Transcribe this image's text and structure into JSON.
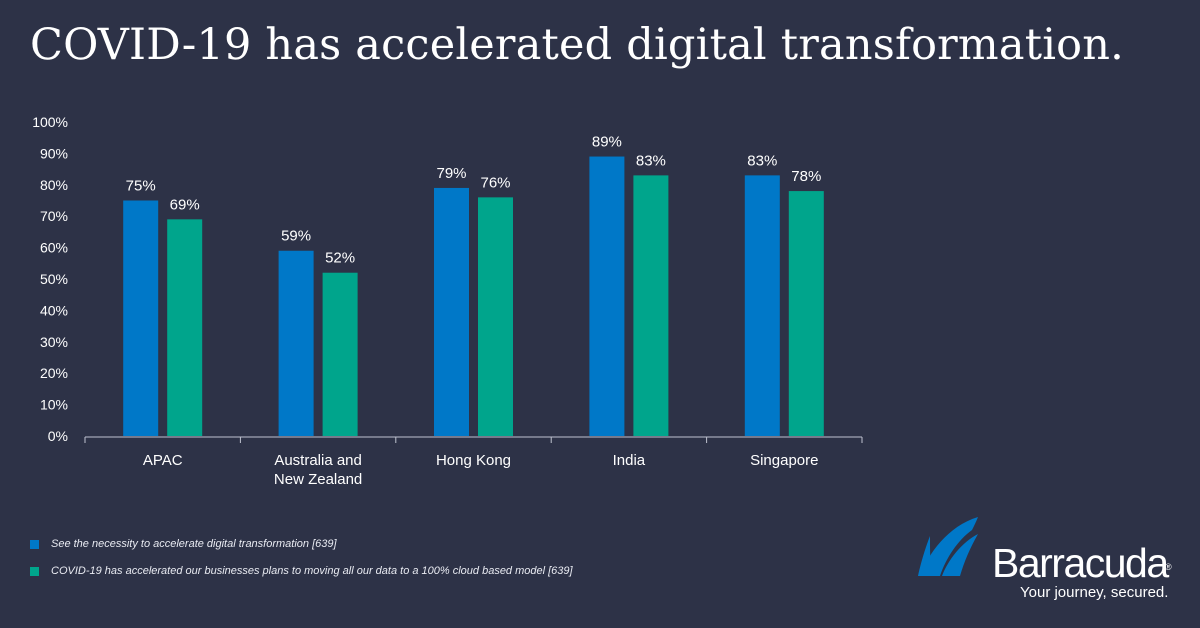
{
  "title": "COVID-19 has accelerated digital transformation.",
  "colors": {
    "series1": "#0078c8",
    "series2": "#00a58c",
    "background": "#2d3247"
  },
  "chart_data": {
    "type": "bar",
    "categories": [
      "APAC",
      "Australia and New Zealand",
      "Hong Kong",
      "India",
      "Singapore"
    ],
    "category_lines": [
      [
        "APAC"
      ],
      [
        "Australia and",
        "New Zealand"
      ],
      [
        "Hong Kong"
      ],
      [
        "India"
      ],
      [
        "Singapore"
      ]
    ],
    "series": [
      {
        "name": "See the necessity to accelerate digital transformation [639]",
        "values": [
          75,
          59,
          79,
          89,
          83
        ],
        "labels": [
          "75%",
          "59%",
          "79%",
          "89%",
          "83%"
        ]
      },
      {
        "name": "COVID-19 has accelerated our businesses plans to moving all our data to a 100% cloud based model [639]",
        "values": [
          69,
          52,
          76,
          83,
          78
        ],
        "labels": [
          "69%",
          "52%",
          "76%",
          "83%",
          "78%"
        ]
      }
    ],
    "ylim": [
      0,
      100
    ],
    "yticks": [
      0,
      10,
      20,
      30,
      40,
      50,
      60,
      70,
      80,
      90,
      100
    ],
    "ytick_labels": [
      "0%",
      "10%",
      "20%",
      "30%",
      "40%",
      "50%",
      "60%",
      "70%",
      "80%",
      "90%",
      "100%"
    ],
    "xlabel": "",
    "ylabel": "",
    "grid": false,
    "legend_position": "bottom-left"
  },
  "legend": [
    "See the necessity to accelerate digital transformation [639]",
    "COVID-19 has accelerated our businesses plans to moving all our data to a 100% cloud based model [639]"
  ],
  "brand": {
    "name": "Barracuda",
    "registered": "®",
    "tagline": "Your journey, secured."
  }
}
